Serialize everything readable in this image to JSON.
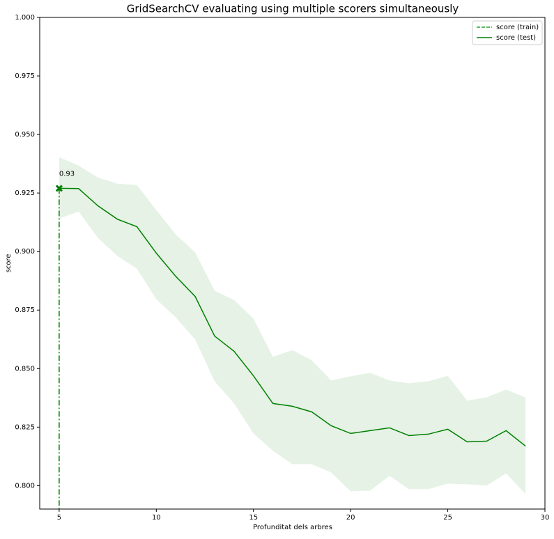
{
  "chart_data": {
    "type": "line",
    "title": "GridSearchCV evaluating using multiple scorers simultaneously",
    "xlabel": "Profunditat dels arbres",
    "ylabel": "score",
    "x": [
      5,
      6,
      7,
      8,
      9,
      10,
      11,
      12,
      13,
      14,
      15,
      16,
      17,
      18,
      19,
      20,
      21,
      22,
      23,
      24,
      25,
      26,
      27,
      28,
      29
    ],
    "series": [
      {
        "name": "score (test)",
        "color": "#008000",
        "values": [
          0.927,
          0.9269,
          0.9195,
          0.9138,
          0.9106,
          0.8993,
          0.8894,
          0.8808,
          0.8639,
          0.8574,
          0.8469,
          0.8351,
          0.8339,
          0.8315,
          0.8256,
          0.8223,
          0.8235,
          0.8247,
          0.8214,
          0.822,
          0.8241,
          0.8187,
          0.819,
          0.8235,
          0.8169
        ],
        "upper": [
          0.9403,
          0.9367,
          0.9316,
          0.929,
          0.9284,
          0.9177,
          0.9073,
          0.8996,
          0.8832,
          0.8793,
          0.8713,
          0.855,
          0.8579,
          0.8535,
          0.8449,
          0.8467,
          0.8482,
          0.8449,
          0.8437,
          0.8446,
          0.8469,
          0.8363,
          0.8377,
          0.841,
          0.8377
        ],
        "lower": [
          0.9141,
          0.9171,
          0.9058,
          0.8981,
          0.8927,
          0.8796,
          0.8719,
          0.8624,
          0.8446,
          0.8351,
          0.8223,
          0.8149,
          0.8092,
          0.8092,
          0.8056,
          0.7976,
          0.7979,
          0.8042,
          0.7985,
          0.7985,
          0.8009,
          0.8006,
          0.8,
          0.8053,
          0.7964
        ]
      }
    ],
    "legend": [
      {
        "name": "score (train)",
        "color": "#2ca02c",
        "dash": true
      },
      {
        "name": "score (test)",
        "color": "#008000",
        "dash": false
      }
    ],
    "best": {
      "x": 5,
      "value": 0.927,
      "label": "0.93",
      "color": "#008000"
    },
    "xlim": [
      4,
      30
    ],
    "xticks": [
      5,
      10,
      15,
      20,
      25,
      30
    ],
    "ylim": [
      0.79,
      1.0
    ],
    "yticks": [
      {
        "value": 0.8,
        "label": "0.800"
      },
      {
        "value": 0.825,
        "label": "0.825"
      },
      {
        "value": 0.85,
        "label": "0.850"
      },
      {
        "value": 0.875,
        "label": "0.875"
      },
      {
        "value": 0.9,
        "label": "0.900"
      },
      {
        "value": 0.925,
        "label": "0.925"
      },
      {
        "value": 0.95,
        "label": "0.950"
      },
      {
        "value": 0.975,
        "label": "0.975"
      },
      {
        "value": 1.0,
        "label": "1.000"
      }
    ]
  }
}
